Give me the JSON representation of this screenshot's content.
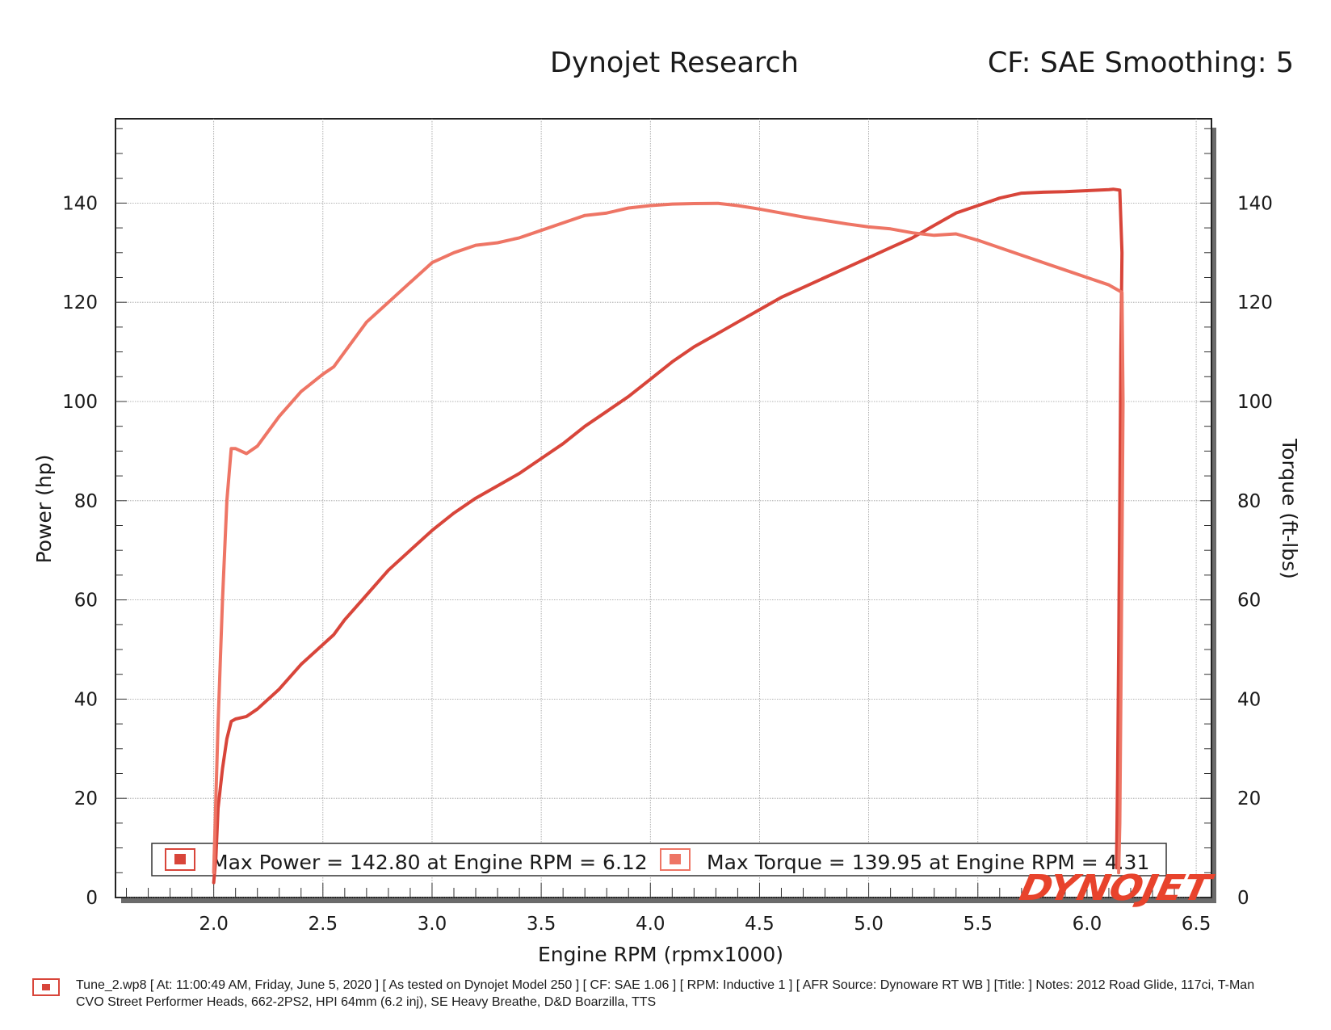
{
  "header": {
    "title": "Dynojet Research",
    "settings": "CF: SAE Smoothing: 5"
  },
  "legend": {
    "power": "Max Power = 142.80 at Engine RPM = 6.12",
    "torque": "Max Torque = 139.95 at Engine RPM = 4.31"
  },
  "logo_text": "DYNOJET",
  "footer": {
    "text": "Tune_2.wp8 [ At: 11:00:49 AM, Friday, June 5, 2020 ] [ As tested on Dynojet Model 250 ] [ CF: SAE 1.06 ] [ RPM: Inductive 1 ] [ AFR Source: Dynoware RT WB ] [Title: ]  Notes: 2012 Road Glide, 117ci, T-Man CVO Street Performer Heads, 662-2PS2, HPI 64mm (6.2 inj), SE Heavy Breathe, D&D Boarzilla, TTS"
  },
  "colors": {
    "power": "#d8453a",
    "torque": "#ee7565",
    "grid": "#9a9a9a",
    "logo": "#e8432c"
  },
  "chart_data": {
    "type": "line",
    "xlabel": "Engine RPM (rpmx1000)",
    "ylabel": "Power (hp)",
    "y2label": "Torque (ft-lbs)",
    "xlim": [
      1.55,
      6.57
    ],
    "ylim": [
      0,
      157
    ],
    "y2lim": [
      0,
      157
    ],
    "xticks": [
      "2.0",
      "2.5",
      "3.0",
      "3.5",
      "4.0",
      "4.5",
      "5.0",
      "5.5",
      "6.0",
      "6.5"
    ],
    "yticks": [
      "0",
      "20",
      "40",
      "60",
      "80",
      "100",
      "120",
      "140"
    ],
    "y2ticks": [
      "0",
      "20",
      "40",
      "60",
      "80",
      "100",
      "120",
      "140"
    ],
    "grid": true,
    "legend_position": "bottom",
    "series": [
      {
        "name": "Max Power",
        "axis": "left",
        "points": [
          [
            2.0,
            3
          ],
          [
            2.01,
            8
          ],
          [
            2.02,
            18
          ],
          [
            2.04,
            26
          ],
          [
            2.06,
            32
          ],
          [
            2.08,
            35.5
          ],
          [
            2.1,
            36
          ],
          [
            2.15,
            36.5
          ],
          [
            2.2,
            38
          ],
          [
            2.3,
            42
          ],
          [
            2.4,
            47
          ],
          [
            2.5,
            51
          ],
          [
            2.55,
            53
          ],
          [
            2.6,
            56
          ],
          [
            2.7,
            61
          ],
          [
            2.8,
            66
          ],
          [
            2.9,
            70
          ],
          [
            3.0,
            74
          ],
          [
            3.1,
            77.5
          ],
          [
            3.2,
            80.5
          ],
          [
            3.3,
            83
          ],
          [
            3.4,
            85.5
          ],
          [
            3.5,
            88.5
          ],
          [
            3.6,
            91.5
          ],
          [
            3.7,
            95
          ],
          [
            3.8,
            98
          ],
          [
            3.9,
            101
          ],
          [
            4.0,
            104.5
          ],
          [
            4.1,
            108
          ],
          [
            4.2,
            111
          ],
          [
            4.3,
            113.5
          ],
          [
            4.4,
            116
          ],
          [
            4.5,
            118.5
          ],
          [
            4.6,
            121
          ],
          [
            4.7,
            123
          ],
          [
            4.8,
            125
          ],
          [
            4.9,
            127
          ],
          [
            5.0,
            129
          ],
          [
            5.1,
            131
          ],
          [
            5.2,
            133
          ],
          [
            5.3,
            135.5
          ],
          [
            5.4,
            138
          ],
          [
            5.5,
            139.5
          ],
          [
            5.6,
            141
          ],
          [
            5.7,
            142
          ],
          [
            5.8,
            142.2
          ],
          [
            5.9,
            142.3
          ],
          [
            6.0,
            142.5
          ],
          [
            6.1,
            142.7
          ],
          [
            6.12,
            142.8
          ],
          [
            6.15,
            142.6
          ],
          [
            6.16,
            130
          ],
          [
            6.155,
            110
          ],
          [
            6.15,
            80
          ],
          [
            6.145,
            50
          ],
          [
            6.14,
            25
          ],
          [
            6.135,
            6
          ]
        ]
      },
      {
        "name": "Max Torque",
        "axis": "right",
        "points": [
          [
            2.0,
            5
          ],
          [
            2.02,
            35
          ],
          [
            2.04,
            60
          ],
          [
            2.06,
            80
          ],
          [
            2.08,
            90.5
          ],
          [
            2.1,
            90.5
          ],
          [
            2.15,
            89.5
          ],
          [
            2.2,
            91
          ],
          [
            2.3,
            97
          ],
          [
            2.4,
            102
          ],
          [
            2.5,
            105.5
          ],
          [
            2.55,
            107
          ],
          [
            2.6,
            110
          ],
          [
            2.7,
            116
          ],
          [
            2.8,
            120
          ],
          [
            2.9,
            124
          ],
          [
            3.0,
            128
          ],
          [
            3.1,
            130
          ],
          [
            3.2,
            131.5
          ],
          [
            3.3,
            132
          ],
          [
            3.4,
            133
          ],
          [
            3.5,
            134.5
          ],
          [
            3.6,
            136
          ],
          [
            3.7,
            137.5
          ],
          [
            3.8,
            138
          ],
          [
            3.9,
            139
          ],
          [
            4.0,
            139.5
          ],
          [
            4.1,
            139.8
          ],
          [
            4.2,
            139.9
          ],
          [
            4.31,
            139.95
          ],
          [
            4.4,
            139.5
          ],
          [
            4.5,
            138.8
          ],
          [
            4.6,
            138
          ],
          [
            4.7,
            137.2
          ],
          [
            4.8,
            136.5
          ],
          [
            4.9,
            135.8
          ],
          [
            5.0,
            135.2
          ],
          [
            5.1,
            134.8
          ],
          [
            5.2,
            134
          ],
          [
            5.3,
            133.5
          ],
          [
            5.4,
            133.8
          ],
          [
            5.5,
            132.5
          ],
          [
            5.6,
            131
          ],
          [
            5.7,
            129.5
          ],
          [
            5.8,
            128
          ],
          [
            5.9,
            126.5
          ],
          [
            6.0,
            125
          ],
          [
            6.1,
            123.5
          ],
          [
            6.16,
            122
          ],
          [
            6.165,
            100
          ],
          [
            6.16,
            70
          ],
          [
            6.155,
            40
          ],
          [
            6.15,
            15
          ],
          [
            6.145,
            5
          ]
        ]
      }
    ]
  }
}
